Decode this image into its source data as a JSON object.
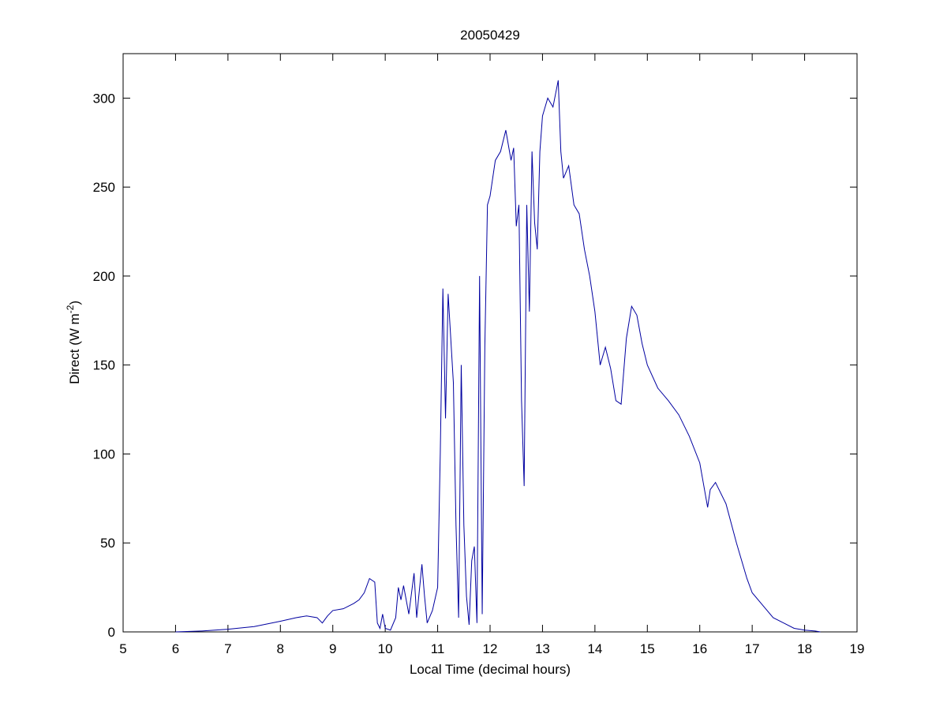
{
  "chart_data": {
    "type": "line",
    "title": "20050429",
    "xlabel": "Local Time (decimal hours)",
    "ylabel": {
      "text": "Direct (W m",
      "superscript": "-2",
      "suffix": ")"
    },
    "x": [
      6.0,
      6.5,
      7.0,
      7.5,
      8.0,
      8.3,
      8.5,
      8.7,
      8.8,
      8.9,
      9.0,
      9.2,
      9.4,
      9.5,
      9.6,
      9.7,
      9.8,
      9.85,
      9.9,
      9.95,
      10.0,
      10.1,
      10.2,
      10.25,
      10.3,
      10.35,
      10.45,
      10.55,
      10.6,
      10.7,
      10.75,
      10.8,
      10.9,
      11.0,
      11.05,
      11.1,
      11.15,
      11.2,
      11.3,
      11.35,
      11.4,
      11.45,
      11.5,
      11.55,
      11.6,
      11.65,
      11.7,
      11.75,
      11.8,
      11.85,
      11.9,
      11.95,
      12.0,
      12.1,
      12.2,
      12.3,
      12.4,
      12.45,
      12.5,
      12.55,
      12.6,
      12.65,
      12.7,
      12.75,
      12.8,
      12.85,
      12.9,
      12.95,
      13.0,
      13.1,
      13.2,
      13.3,
      13.35,
      13.4,
      13.5,
      13.6,
      13.7,
      13.8,
      13.9,
      14.0,
      14.1,
      14.2,
      14.3,
      14.4,
      14.5,
      14.6,
      14.7,
      14.8,
      14.9,
      15.0,
      15.2,
      15.4,
      15.6,
      15.8,
      16.0,
      16.15,
      16.2,
      16.3,
      16.5,
      16.7,
      16.9,
      17.0,
      17.2,
      17.4,
      17.6,
      17.8,
      18.0,
      18.2,
      18.3
    ],
    "series": [
      {
        "name": "Direct",
        "color": "#0000a0",
        "values": [
          0,
          0.5,
          1.5,
          3,
          6,
          8,
          9,
          8,
          5,
          9,
          12,
          13,
          16,
          18,
          22,
          30,
          28,
          5,
          2,
          10,
          2,
          1,
          8,
          25,
          18,
          26,
          10,
          33,
          8,
          38,
          20,
          5,
          12,
          25,
          100,
          193,
          120,
          190,
          140,
          60,
          8,
          150,
          60,
          20,
          4,
          40,
          48,
          5,
          200,
          10,
          160,
          240,
          245,
          265,
          270,
          282,
          265,
          272,
          228,
          240,
          130,
          82,
          240,
          180,
          270,
          230,
          215,
          270,
          290,
          300,
          295,
          310,
          270,
          255,
          262,
          240,
          235,
          215,
          200,
          180,
          150,
          160,
          148,
          130,
          128,
          165,
          183,
          178,
          162,
          150,
          137,
          130,
          122,
          110,
          95,
          70,
          80,
          84,
          72,
          50,
          30,
          22,
          15,
          8,
          5,
          2,
          1,
          0.5,
          0
        ]
      }
    ],
    "xlim": [
      5,
      19
    ],
    "xticks": [
      5,
      6,
      7,
      8,
      9,
      10,
      11,
      12,
      13,
      14,
      15,
      16,
      17,
      18,
      19
    ],
    "ylim": [
      0,
      325
    ],
    "yticks": [
      0,
      50,
      100,
      150,
      200,
      250,
      300
    ],
    "grid": false
  }
}
